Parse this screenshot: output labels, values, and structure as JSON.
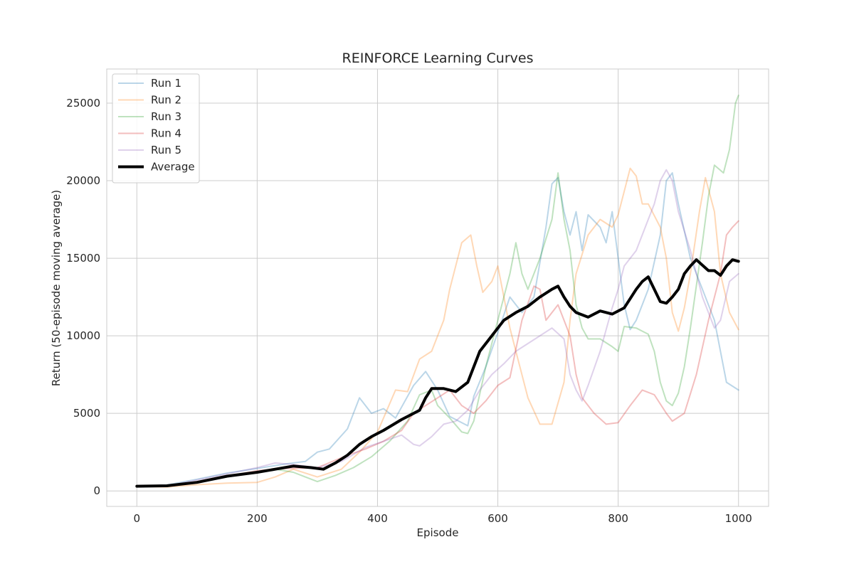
{
  "chart_data": {
    "type": "line",
    "title": "REINFORCE Learning Curves",
    "xlabel": "Episode",
    "ylabel": "Return (50-episode moving average)",
    "xlim": [
      -50,
      1050
    ],
    "ylim": [
      -1000,
      27200
    ],
    "xticks": [
      0,
      200,
      400,
      600,
      800,
      1000
    ],
    "yticks": [
      0,
      5000,
      10000,
      15000,
      20000,
      25000
    ],
    "grid": true,
    "legend_position": "top-left",
    "series": [
      {
        "name": "Run 1",
        "color": "#1f77b4",
        "opacity": 0.3,
        "width": 2,
        "points": [
          [
            0,
            300
          ],
          [
            50,
            380
          ],
          [
            100,
            750
          ],
          [
            150,
            1150
          ],
          [
            200,
            1450
          ],
          [
            250,
            1750
          ],
          [
            280,
            1900
          ],
          [
            300,
            2500
          ],
          [
            320,
            2700
          ],
          [
            350,
            4000
          ],
          [
            370,
            6000
          ],
          [
            390,
            5000
          ],
          [
            410,
            5300
          ],
          [
            430,
            4700
          ],
          [
            460,
            6800
          ],
          [
            480,
            7700
          ],
          [
            500,
            6500
          ],
          [
            520,
            4800
          ],
          [
            550,
            4200
          ],
          [
            560,
            6100
          ],
          [
            580,
            8000
          ],
          [
            600,
            10200
          ],
          [
            620,
            12500
          ],
          [
            640,
            11500
          ],
          [
            660,
            12500
          ],
          [
            680,
            17000
          ],
          [
            690,
            19800
          ],
          [
            700,
            20200
          ],
          [
            710,
            18000
          ],
          [
            720,
            16500
          ],
          [
            730,
            18000
          ],
          [
            740,
            15500
          ],
          [
            750,
            17800
          ],
          [
            770,
            17000
          ],
          [
            780,
            16000
          ],
          [
            790,
            18000
          ],
          [
            810,
            12000
          ],
          [
            820,
            10400
          ],
          [
            830,
            11000
          ],
          [
            840,
            12000
          ],
          [
            850,
            13000
          ],
          [
            870,
            16500
          ],
          [
            880,
            20000
          ],
          [
            890,
            20500
          ],
          [
            900,
            18500
          ],
          [
            920,
            15000
          ],
          [
            940,
            13000
          ],
          [
            960,
            11000
          ],
          [
            980,
            7000
          ],
          [
            1000,
            6500
          ]
        ]
      },
      {
        "name": "Run 2",
        "color": "#ff7f0e",
        "opacity": 0.3,
        "width": 2,
        "points": [
          [
            0,
            300
          ],
          [
            50,
            250
          ],
          [
            100,
            400
          ],
          [
            150,
            500
          ],
          [
            200,
            550
          ],
          [
            230,
            900
          ],
          [
            260,
            1400
          ],
          [
            300,
            900
          ],
          [
            340,
            1400
          ],
          [
            370,
            2500
          ],
          [
            400,
            3800
          ],
          [
            430,
            6500
          ],
          [
            450,
            6400
          ],
          [
            470,
            8500
          ],
          [
            490,
            9000
          ],
          [
            510,
            11000
          ],
          [
            520,
            13000
          ],
          [
            540,
            16000
          ],
          [
            555,
            16500
          ],
          [
            565,
            14500
          ],
          [
            575,
            12800
          ],
          [
            590,
            13500
          ],
          [
            600,
            14500
          ],
          [
            610,
            12500
          ],
          [
            620,
            10500
          ],
          [
            630,
            9000
          ],
          [
            650,
            6000
          ],
          [
            670,
            4300
          ],
          [
            690,
            4300
          ],
          [
            710,
            7000
          ],
          [
            720,
            11000
          ],
          [
            730,
            14000
          ],
          [
            750,
            16500
          ],
          [
            770,
            17500
          ],
          [
            790,
            17000
          ],
          [
            800,
            17800
          ],
          [
            820,
            20800
          ],
          [
            830,
            20300
          ],
          [
            840,
            18500
          ],
          [
            850,
            18500
          ],
          [
            870,
            17000
          ],
          [
            880,
            15000
          ],
          [
            890,
            11500
          ],
          [
            900,
            10300
          ],
          [
            910,
            11800
          ],
          [
            920,
            14000
          ],
          [
            935,
            18000
          ],
          [
            945,
            20200
          ],
          [
            960,
            18000
          ],
          [
            970,
            14000
          ],
          [
            985,
            11500
          ],
          [
            1000,
            10400
          ]
        ]
      },
      {
        "name": "Run 3",
        "color": "#2ca02c",
        "opacity": 0.3,
        "width": 2,
        "points": [
          [
            0,
            300
          ],
          [
            50,
            300
          ],
          [
            100,
            550
          ],
          [
            150,
            900
          ],
          [
            200,
            1200
          ],
          [
            230,
            1400
          ],
          [
            260,
            1200
          ],
          [
            280,
            900
          ],
          [
            300,
            600
          ],
          [
            330,
            1000
          ],
          [
            360,
            1500
          ],
          [
            390,
            2200
          ],
          [
            420,
            3200
          ],
          [
            450,
            4500
          ],
          [
            470,
            6200
          ],
          [
            490,
            6500
          ],
          [
            500,
            5500
          ],
          [
            520,
            4700
          ],
          [
            540,
            3800
          ],
          [
            550,
            3700
          ],
          [
            560,
            4500
          ],
          [
            580,
            8000
          ],
          [
            600,
            11000
          ],
          [
            620,
            14000
          ],
          [
            630,
            16000
          ],
          [
            640,
            14000
          ],
          [
            650,
            13000
          ],
          [
            670,
            15000
          ],
          [
            690,
            17500
          ],
          [
            700,
            20500
          ],
          [
            710,
            17500
          ],
          [
            720,
            15500
          ],
          [
            730,
            12000
          ],
          [
            740,
            10500
          ],
          [
            750,
            9800
          ],
          [
            770,
            9800
          ],
          [
            790,
            9300
          ],
          [
            800,
            9000
          ],
          [
            810,
            10600
          ],
          [
            830,
            10500
          ],
          [
            840,
            10300
          ],
          [
            850,
            10100
          ],
          [
            860,
            9000
          ],
          [
            870,
            7000
          ],
          [
            880,
            5800
          ],
          [
            890,
            5500
          ],
          [
            900,
            6300
          ],
          [
            910,
            8000
          ],
          [
            920,
            10500
          ],
          [
            940,
            16000
          ],
          [
            950,
            19000
          ],
          [
            960,
            21000
          ],
          [
            975,
            20500
          ],
          [
            985,
            22000
          ],
          [
            990,
            23500
          ],
          [
            995,
            25000
          ],
          [
            1000,
            25500
          ]
        ]
      },
      {
        "name": "Run 4",
        "color": "#d62728",
        "opacity": 0.3,
        "width": 2,
        "points": [
          [
            0,
            300
          ],
          [
            50,
            300
          ],
          [
            100,
            600
          ],
          [
            150,
            950
          ],
          [
            200,
            1300
          ],
          [
            250,
            1450
          ],
          [
            300,
            1500
          ],
          [
            350,
            2300
          ],
          [
            380,
            2700
          ],
          [
            410,
            3200
          ],
          [
            440,
            3900
          ],
          [
            460,
            5000
          ],
          [
            480,
            5500
          ],
          [
            500,
            6000
          ],
          [
            520,
            6500
          ],
          [
            540,
            5500
          ],
          [
            560,
            5000
          ],
          [
            580,
            5800
          ],
          [
            600,
            6800
          ],
          [
            620,
            7300
          ],
          [
            640,
            11000
          ],
          [
            660,
            13200
          ],
          [
            670,
            13000
          ],
          [
            680,
            11000
          ],
          [
            700,
            12000
          ],
          [
            720,
            10000
          ],
          [
            730,
            7500
          ],
          [
            740,
            6000
          ],
          [
            760,
            5000
          ],
          [
            780,
            4300
          ],
          [
            800,
            4400
          ],
          [
            820,
            5500
          ],
          [
            840,
            6500
          ],
          [
            860,
            6200
          ],
          [
            880,
            5000
          ],
          [
            890,
            4500
          ],
          [
            910,
            5000
          ],
          [
            930,
            7500
          ],
          [
            950,
            11000
          ],
          [
            970,
            14000
          ],
          [
            980,
            16500
          ],
          [
            990,
            17000
          ],
          [
            1000,
            17400
          ]
        ]
      },
      {
        "name": "Run 5",
        "color": "#9467bd",
        "opacity": 0.3,
        "width": 2,
        "points": [
          [
            0,
            300
          ],
          [
            50,
            320
          ],
          [
            100,
            700
          ],
          [
            150,
            1100
          ],
          [
            200,
            1500
          ],
          [
            230,
            1800
          ],
          [
            260,
            1700
          ],
          [
            300,
            1500
          ],
          [
            340,
            1900
          ],
          [
            380,
            2800
          ],
          [
            410,
            3200
          ],
          [
            440,
            3600
          ],
          [
            460,
            3000
          ],
          [
            470,
            2900
          ],
          [
            490,
            3500
          ],
          [
            510,
            4300
          ],
          [
            530,
            4500
          ],
          [
            550,
            5200
          ],
          [
            570,
            6500
          ],
          [
            590,
            7500
          ],
          [
            610,
            8200
          ],
          [
            630,
            9000
          ],
          [
            650,
            9500
          ],
          [
            670,
            10000
          ],
          [
            690,
            10500
          ],
          [
            710,
            9800
          ],
          [
            720,
            7500
          ],
          [
            730,
            6500
          ],
          [
            740,
            5800
          ],
          [
            750,
            6800
          ],
          [
            770,
            9000
          ],
          [
            790,
            11800
          ],
          [
            800,
            13000
          ],
          [
            810,
            14500
          ],
          [
            830,
            15500
          ],
          [
            850,
            17500
          ],
          [
            860,
            18500
          ],
          [
            870,
            20000
          ],
          [
            880,
            20700
          ],
          [
            890,
            20000
          ],
          [
            900,
            18000
          ],
          [
            920,
            15500
          ],
          [
            940,
            12500
          ],
          [
            960,
            10500
          ],
          [
            970,
            11000
          ],
          [
            985,
            13500
          ],
          [
            1000,
            14000
          ]
        ]
      },
      {
        "name": "Average",
        "color": "#000000",
        "opacity": 1,
        "width": 4,
        "points": [
          [
            0,
            300
          ],
          [
            50,
            330
          ],
          [
            100,
            550
          ],
          [
            150,
            950
          ],
          [
            200,
            1200
          ],
          [
            230,
            1400
          ],
          [
            260,
            1600
          ],
          [
            290,
            1500
          ],
          [
            310,
            1400
          ],
          [
            330,
            1800
          ],
          [
            350,
            2300
          ],
          [
            370,
            3000
          ],
          [
            390,
            3500
          ],
          [
            410,
            3900
          ],
          [
            440,
            4600
          ],
          [
            470,
            5200
          ],
          [
            480,
            6000
          ],
          [
            490,
            6600
          ],
          [
            510,
            6600
          ],
          [
            530,
            6400
          ],
          [
            550,
            7000
          ],
          [
            570,
            9000
          ],
          [
            590,
            10000
          ],
          [
            610,
            11000
          ],
          [
            630,
            11500
          ],
          [
            650,
            11900
          ],
          [
            670,
            12500
          ],
          [
            690,
            13000
          ],
          [
            700,
            13200
          ],
          [
            710,
            12500
          ],
          [
            720,
            11900
          ],
          [
            730,
            11500
          ],
          [
            750,
            11200
          ],
          [
            770,
            11600
          ],
          [
            790,
            11400
          ],
          [
            810,
            11800
          ],
          [
            830,
            13000
          ],
          [
            840,
            13500
          ],
          [
            850,
            13800
          ],
          [
            860,
            13000
          ],
          [
            870,
            12200
          ],
          [
            880,
            12100
          ],
          [
            890,
            12500
          ],
          [
            900,
            13000
          ],
          [
            910,
            14000
          ],
          [
            920,
            14500
          ],
          [
            930,
            14900
          ],
          [
            950,
            14200
          ],
          [
            960,
            14200
          ],
          [
            970,
            13900
          ],
          [
            980,
            14500
          ],
          [
            990,
            14900
          ],
          [
            1000,
            14800
          ]
        ]
      }
    ]
  }
}
